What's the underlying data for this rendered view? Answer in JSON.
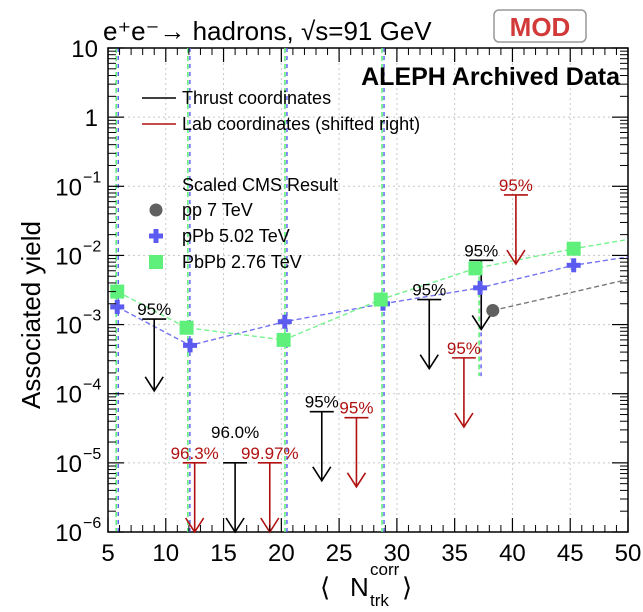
{
  "chart_data": {
    "type": "scatter",
    "title": "e⁺e⁻→ hadrons, √s=91 GeV",
    "badge": "MOD",
    "subtitle": "ALEPH Archived Data",
    "xlabel": "⟨ N_trk^corr ⟩",
    "xlabel_main": "N",
    "xlabel_sup": "corr",
    "xlabel_sub": "trk",
    "xlabel_left": "⟨",
    "xlabel_right": "⟩",
    "ylabel": "Associated yield",
    "xlim": [
      5,
      50
    ],
    "ylim_log10": [
      -6,
      1
    ],
    "yscale": "log",
    "xticks": [
      5,
      10,
      15,
      20,
      25,
      30,
      35,
      40,
      45,
      50
    ],
    "yticks": [
      {
        "base": "10",
        "exp": "−6",
        "log": -6
      },
      {
        "base": "10",
        "exp": "−5",
        "log": -5
      },
      {
        "base": "10",
        "exp": "−4",
        "log": -4
      },
      {
        "base": "10",
        "exp": "−3",
        "log": -3
      },
      {
        "base": "10",
        "exp": "−2",
        "log": -2
      },
      {
        "base": "10",
        "exp": "−1",
        "log": -1
      },
      {
        "base": "1",
        "exp": "",
        "log": 0
      },
      {
        "base": "10",
        "exp": "",
        "log": 1
      }
    ],
    "legend": {
      "placement": "top-left",
      "lines": [
        {
          "label": "Thrust coordinates",
          "color": "#000000"
        },
        {
          "label": "Lab coordinates (shifted right)",
          "color": "#b01010"
        }
      ],
      "header": "Scaled CMS Result",
      "markers": [
        {
          "label": "pp 7 TeV",
          "color": "#606060",
          "marker": "circle"
        },
        {
          "label": "pPb 5.02 TeV",
          "color": "#5b5bf0",
          "marker": "cross"
        },
        {
          "label": "PbPb 2.76 TeV",
          "color": "#5ef07a",
          "marker": "square"
        }
      ]
    },
    "series": [
      {
        "name": "pp 7 TeV",
        "color": "#606060",
        "marker": "circle",
        "x": [
          38.3
        ],
        "y": [
          0.0016
        ],
        "line_to_x": 50,
        "line_to_y": 0.0045
      },
      {
        "name": "pPb 5.02 TeV",
        "color": "#5b5bf0",
        "marker": "cross",
        "x": [
          5.8,
          12.1,
          20.3,
          28.8,
          37.2,
          45.3
        ],
        "y": [
          0.0018,
          0.0005,
          0.0011,
          0.002,
          0.0034,
          0.0072
        ],
        "line_to_x": 50,
        "line_to_y": 0.0095
      },
      {
        "name": "PbPb 2.76 TeV",
        "color": "#5ef07a",
        "marker": "square",
        "x": [
          5.8,
          11.8,
          20.2,
          28.6,
          36.8,
          45.3
        ],
        "y": [
          0.003,
          0.0009,
          0.0006,
          0.0023,
          0.0065,
          0.0125
        ],
        "line_to_x": 50,
        "line_to_y": 0.017
      }
    ],
    "vertical_lines": [
      {
        "x": 5.8,
        "color": "#5b5bf0"
      },
      {
        "x": 12.0,
        "color": "#5b5bf0"
      },
      {
        "x": 20.4,
        "color": "#5b5bf0"
      },
      {
        "x": 28.8,
        "color": "#5b5bf0"
      },
      {
        "x": 37.2,
        "color": "#5b5bf0",
        "y_top": 0.0065,
        "y_bottom": 0.00018
      }
    ],
    "upper_limits": [
      {
        "x": 9.0,
        "y": 0.0012,
        "label": "95%",
        "color": "#000000",
        "y_tip": 0.00011,
        "label_pos": "above"
      },
      {
        "x": 16.0,
        "y": 1e-05,
        "label": "96.0%",
        "color": "#000000",
        "y_tip": 1e-06,
        "label_pos": "above-high"
      },
      {
        "x": 12.5,
        "y": 1e-05,
        "label": "96.3%",
        "color": "#b01010",
        "y_tip": 1e-06,
        "label_pos": "above"
      },
      {
        "x": 19.0,
        "y": 1e-05,
        "label": "99.97%",
        "color": "#b01010",
        "y_tip": 1e-06,
        "label_pos": "above"
      },
      {
        "x": 23.5,
        "y": 5.5e-05,
        "label": "95%",
        "color": "#000000",
        "y_tip": 5.5e-06,
        "label_pos": "above"
      },
      {
        "x": 26.5,
        "y": 4.5e-05,
        "label": "95%",
        "color": "#b01010",
        "y_tip": 4.5e-06,
        "label_pos": "above"
      },
      {
        "x": 32.8,
        "y": 0.0023,
        "label": "95%",
        "color": "#000000",
        "y_tip": 0.00023,
        "label_pos": "above"
      },
      {
        "x": 37.3,
        "y": 0.0085,
        "label": "95%",
        "color": "#000000",
        "y_tip": 0.00085,
        "label_pos": "above"
      },
      {
        "x": 35.8,
        "y": 0.00033,
        "label": "95%",
        "color": "#b01010",
        "y_tip": 3.3e-05,
        "label_pos": "above"
      },
      {
        "x": 40.3,
        "y": 0.075,
        "label": "95%",
        "color": "#b01010",
        "y_tip": 0.0075,
        "label_pos": "above"
      }
    ]
  }
}
